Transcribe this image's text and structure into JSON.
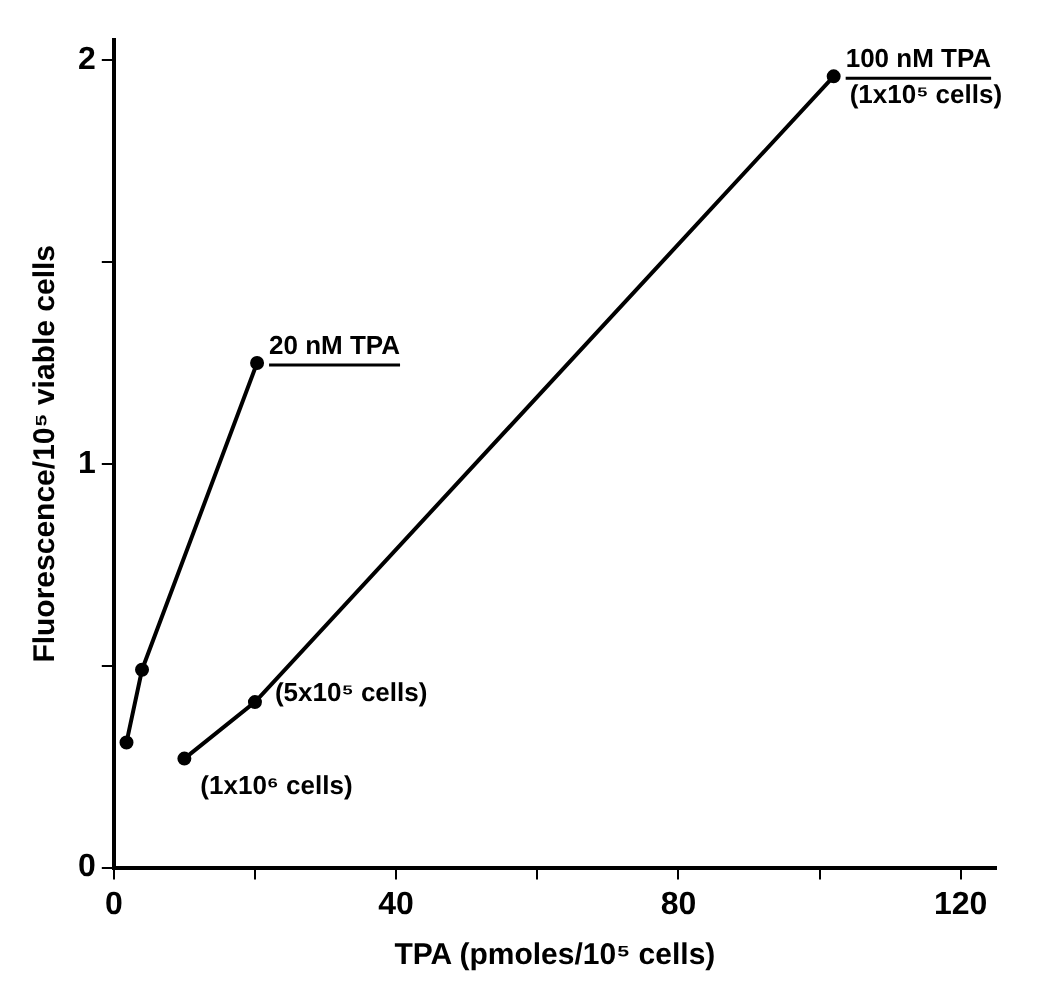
{
  "chart_data": {
    "type": "line",
    "xlabel": "TPA (pmoles/10⁵ cells)",
    "ylabel": "Fluorescence/10⁵ viable cells",
    "xlim": [
      0,
      125
    ],
    "xticks": [
      0,
      {
        "value": 20,
        "label": null
      },
      40,
      {
        "value": 60,
        "label": null
      },
      80,
      {
        "value": 100,
        "label": null
      },
      120
    ],
    "ylim": [
      0,
      2.05
    ],
    "yticks": [
      0,
      {
        "value": 0.5,
        "label": null
      },
      1,
      {
        "value": 1.5,
        "label": null
      },
      2
    ],
    "grid": false,
    "legend": false,
    "marker": "circle",
    "line_style": "solid",
    "series": [
      {
        "name": "20 nM TPA",
        "color": "#000000",
        "x": [
          1.8,
          4,
          20.3
        ],
        "values": [
          0.31,
          0.49,
          1.25
        ]
      },
      {
        "name": "100 nM TPA",
        "color": "#000000",
        "x": [
          10,
          20,
          102
        ],
        "values": [
          0.27,
          0.41,
          1.96
        ]
      }
    ],
    "annotations": [
      {
        "text": "(1x10⁵ cells)",
        "x": 102,
        "y": 1.96
      },
      {
        "text": "(5x10⁵ cells)",
        "x": 20,
        "y": 0.41
      },
      {
        "text": "(1x10⁶ cells)",
        "x": 10,
        "y": 0.27
      }
    ]
  }
}
